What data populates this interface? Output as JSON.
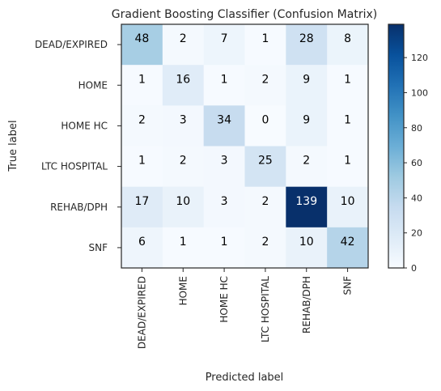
{
  "chart_data": {
    "type": "heatmap",
    "title": "Gradient Boosting Classifier (Confusion Matrix)",
    "xlabel": "Predicted label",
    "ylabel": "True label",
    "x_categories": [
      "DEAD/EXPIRED",
      "HOME",
      "HOME HC",
      "LTC HOSPITAL",
      "REHAB/DPH",
      "SNF"
    ],
    "y_categories": [
      "DEAD/EXPIRED",
      "HOME",
      "HOME HC",
      "LTC HOSPITAL",
      "REHAB/DPH",
      "SNF"
    ],
    "values": [
      [
        48,
        2,
        7,
        1,
        28,
        8
      ],
      [
        1,
        16,
        1,
        2,
        9,
        1
      ],
      [
        2,
        3,
        34,
        0,
        9,
        1
      ],
      [
        1,
        2,
        3,
        25,
        2,
        1
      ],
      [
        17,
        10,
        3,
        2,
        139,
        10
      ],
      [
        6,
        1,
        1,
        2,
        10,
        42
      ]
    ],
    "colormap": "Blues",
    "color_range": [
      0,
      139
    ],
    "colorbar_ticks": [
      0,
      20,
      40,
      60,
      80,
      100,
      120
    ],
    "grid": false,
    "legend": "colorbar-right"
  }
}
